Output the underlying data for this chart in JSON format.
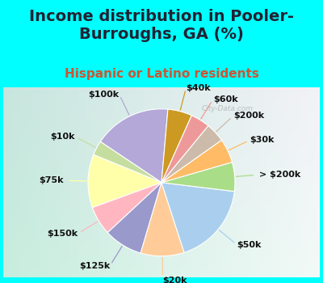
{
  "title": "Income distribution in Pooler-\nBurroughs, GA (%)",
  "subtitle": "Hispanic or Latino residents",
  "background_color": "#00FFFF",
  "watermark": "City-Data.com",
  "labels": [
    "$100k",
    "$10k",
    "$75k",
    "$150k",
    "$125k",
    "$20k",
    "$50k",
    "> $200k",
    "$30k",
    "$200k",
    "$60k",
    "$40k"
  ],
  "values": [
    16,
    3,
    11,
    6,
    8,
    9,
    17,
    6,
    5,
    4,
    4,
    5
  ],
  "colors": [
    "#b3a8d8",
    "#c5dea0",
    "#ffffaa",
    "#ffb6c1",
    "#9999cc",
    "#ffcc99",
    "#aacfee",
    "#aadd88",
    "#ffbb66",
    "#ccbbaa",
    "#ee9999",
    "#cc9922"
  ],
  "title_fontsize": 14,
  "subtitle_fontsize": 11,
  "title_color": "#222233",
  "subtitle_color": "#cc5533",
  "label_fontsize": 8,
  "startangle": 85
}
